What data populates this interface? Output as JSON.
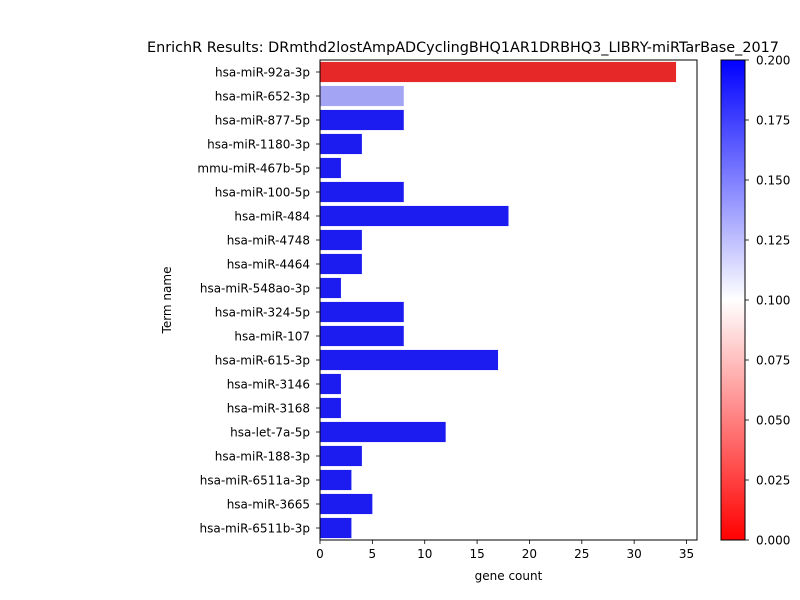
{
  "chart_data": {
    "type": "bar",
    "orientation": "horizontal",
    "title": "EnrichR Results: DRmthd2lostAmpADCyclingBHQ1AR1DRBHQ3_LIBRY-miRTarBase_2017",
    "xlabel": "gene count",
    "ylabel": "Term name",
    "xlim": [
      0,
      36
    ],
    "xticks": [
      0,
      5,
      10,
      15,
      20,
      25,
      30,
      35
    ],
    "grid": false,
    "categories": [
      "hsa-miR-92a-3p",
      "hsa-miR-652-3p",
      "hsa-miR-877-5p",
      "hsa-miR-1180-3p",
      "mmu-miR-467b-5p",
      "hsa-miR-100-5p",
      "hsa-miR-484",
      "hsa-miR-4748",
      "hsa-miR-4464",
      "hsa-miR-548ao-3p",
      "hsa-miR-324-5p",
      "hsa-miR-107",
      "hsa-miR-615-3p",
      "hsa-miR-3146",
      "hsa-miR-3168",
      "hsa-let-7a-5p",
      "hsa-miR-188-3p",
      "hsa-miR-6511a-3p",
      "hsa-miR-3665",
      "hsa-miR-6511b-3p"
    ],
    "values": [
      34,
      8,
      8,
      4,
      2,
      8,
      18,
      4,
      4,
      2,
      8,
      8,
      17,
      2,
      2,
      12,
      4,
      3,
      5,
      3
    ],
    "bar_colors": [
      "#e62828",
      "#a4a4f4",
      "#1c1cf0",
      "#1c1cf0",
      "#1c1cf0",
      "#1c1cf0",
      "#1c1cf0",
      "#1c1cf0",
      "#1c1cf0",
      "#1c1cf0",
      "#1c1cf0",
      "#1c1cf0",
      "#1c1cf0",
      "#1c1cf0",
      "#1c1cf0",
      "#1c1cf0",
      "#1c1cf0",
      "#1c1cf0",
      "#1c1cf0",
      "#1c1cf0"
    ],
    "colorbar": {
      "range": [
        0.0,
        0.2
      ],
      "ticks": [
        "0.000",
        "0.025",
        "0.050",
        "0.075",
        "0.100",
        "0.125",
        "0.150",
        "0.175",
        "0.200"
      ],
      "colors": [
        "#ff0000",
        "#ffffff",
        "#0000ff"
      ]
    }
  }
}
